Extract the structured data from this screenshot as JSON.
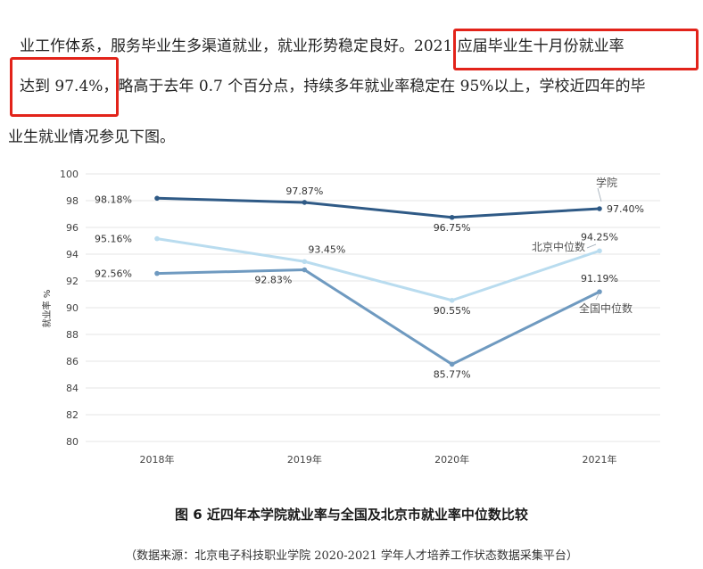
{
  "paragraph": {
    "line1_a": "业工作体系，服务毕业生多渠道就业，就业形势稳定良好。",
    "line1_b": "2021 应届毕业生十月份就业率",
    "line2_a": "达到 97.4%",
    "line2_b": "，略高于去年 0.7 个百分点，持续多年就业率稳定在 95%以上，学校近四年的毕",
    "line3": "业生就业情况参见下图。"
  },
  "colors": {
    "highlight_box": "#e2231a",
    "series_school": "#2f5a86",
    "series_beijing": "#b9dcef",
    "series_national": "#6f9ac0"
  },
  "chart_data": {
    "type": "line",
    "categories": [
      "2018年",
      "2019年",
      "2020年",
      "2021年"
    ],
    "ylabel": "就业率 %",
    "ylim": [
      80,
      100
    ],
    "yticks": [
      80,
      82,
      84,
      86,
      88,
      90,
      92,
      94,
      96,
      98,
      100
    ],
    "grid": true,
    "series": [
      {
        "name": "学院",
        "values": [
          98.18,
          97.87,
          96.75,
          97.4
        ],
        "labels": [
          "98.18%",
          "97.87%",
          "96.75%",
          "97.40%"
        ]
      },
      {
        "name": "北京中位数",
        "values": [
          95.16,
          93.45,
          90.55,
          94.25
        ],
        "labels": [
          "95.16%",
          "93.45%",
          "90.55%",
          "94.25%"
        ]
      },
      {
        "name": "全国中位数",
        "values": [
          92.56,
          92.83,
          85.77,
          91.19
        ],
        "labels": [
          "92.56%",
          "92.83%",
          "85.77%",
          "91.19%"
        ]
      }
    ]
  },
  "caption": "图 6 近四年本学院就业率与全国及北京市就业率中位数比较",
  "source": "（数据来源：北京电子科技职业学院 2020-2021 学年人才培养工作状态数据采集平台）"
}
